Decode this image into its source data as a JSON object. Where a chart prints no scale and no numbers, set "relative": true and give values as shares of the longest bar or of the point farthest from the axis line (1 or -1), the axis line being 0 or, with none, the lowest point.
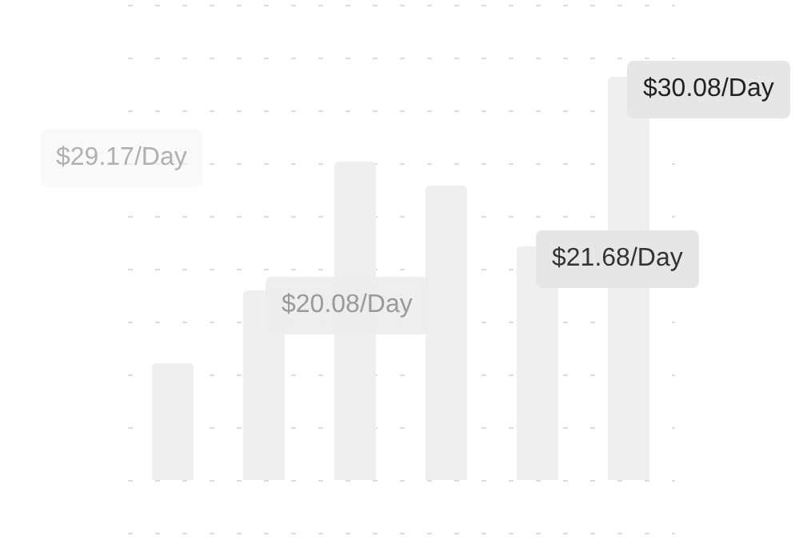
{
  "chart_data": {
    "type": "bar",
    "relative": true,
    "categories": [
      null,
      null,
      null,
      null,
      null,
      null
    ],
    "values": [
      0.29,
      0.47,
      0.79,
      0.73,
      0.58,
      1
    ],
    "color": "#efefef",
    "grid": "y",
    "annotations": [
      "$29.17/Day",
      "$20.08/Day",
      "$21.68/Day",
      "$30.08/Day"
    ]
  }
}
